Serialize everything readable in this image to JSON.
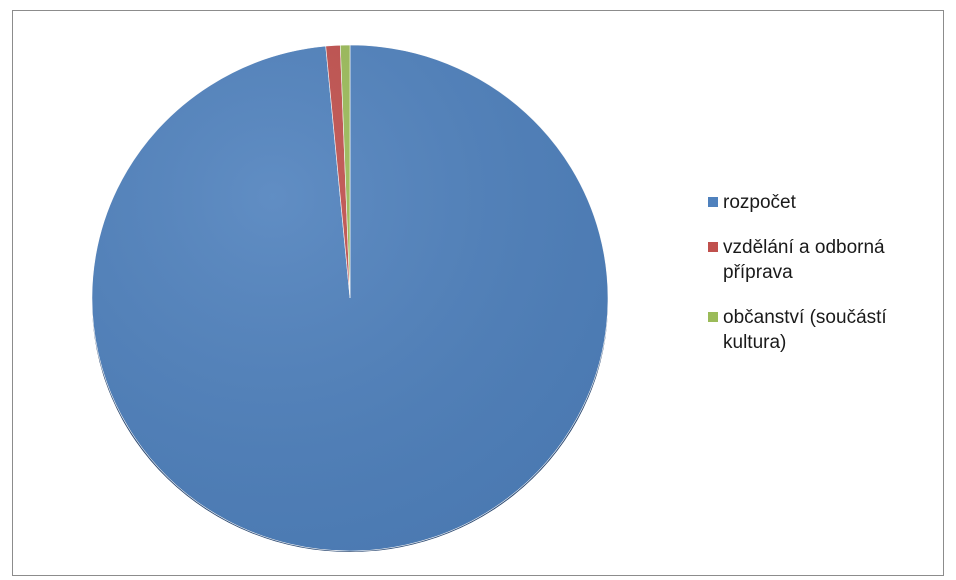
{
  "chart_data": {
    "type": "pie",
    "title": "",
    "slices": [
      {
        "label": "rozpočet",
        "value": 98.5,
        "color": "#4f81bd"
      },
      {
        "label": "vzdělání  a odborná příprava",
        "value": 0.9,
        "color": "#c0504d"
      },
      {
        "label": "občanství (součástí kultura)",
        "value": 0.6,
        "color": "#9bbb59"
      }
    ],
    "legend_position": "right"
  },
  "legend": {
    "items": [
      {
        "lines": [
          "rozpočet"
        ]
      },
      {
        "lines": [
          "vzdělání  a odborná",
          "příprava"
        ]
      },
      {
        "lines": [
          "občanství (součástí",
          "kultura)"
        ]
      }
    ]
  }
}
